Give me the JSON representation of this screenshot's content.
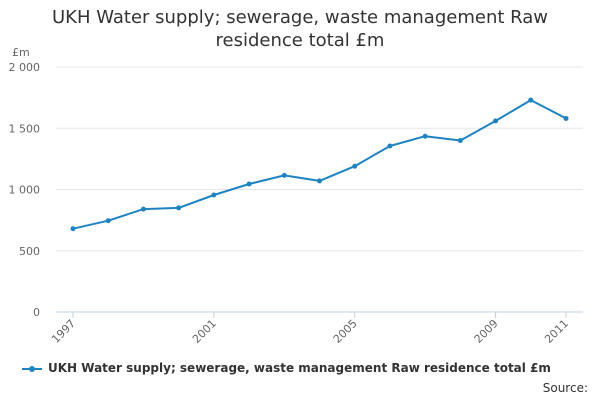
{
  "chart_data": {
    "type": "line",
    "title_lines": [
      "UKH Water supply; sewerage, waste management Raw",
      "residence total £m"
    ],
    "ylabel": "£m",
    "xlabel": "",
    "x": [
      1997,
      1998,
      1999,
      2000,
      2001,
      2002,
      2003,
      2004,
      2005,
      2006,
      2007,
      2008,
      2009,
      2010,
      2011
    ],
    "x_ticks": [
      1997,
      2001,
      2005,
      2009,
      2011
    ],
    "x_tick_labels": [
      "1997",
      "2001",
      "2005",
      "2009",
      "2011"
    ],
    "y_ticks": [
      0,
      500,
      1000,
      1500,
      2000
    ],
    "y_tick_labels": [
      "0",
      "500",
      "1 000",
      "1 500",
      "2 000"
    ],
    "ylim": [
      0,
      2000
    ],
    "series": [
      {
        "name": "UKH Water supply; sewerage, waste management Raw residence total £m",
        "color": "#1f83c2",
        "values": [
          680,
          745,
          840,
          850,
          955,
          1045,
          1115,
          1070,
          1190,
          1355,
          1435,
          1400,
          1560,
          1730,
          1580
        ]
      }
    ],
    "grid": true,
    "legend": "bottom"
  },
  "footer": {
    "source": "Source:"
  }
}
